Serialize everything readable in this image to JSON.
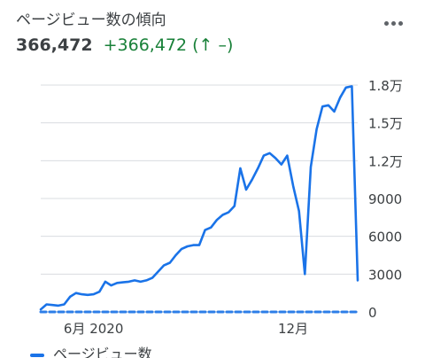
{
  "header": {
    "title": "ページビュー数の傾向",
    "total": "366,472",
    "delta": "+366,472 (↑ –)"
  },
  "menu_icon": "more-vert-icon",
  "colors": {
    "series": "#1a73e8",
    "grid": "#dadce0",
    "axis_text": "#3c4043",
    "delta": "#188038"
  },
  "chart_data": {
    "type": "line",
    "title": "",
    "xlabel": "",
    "ylabel": "",
    "ylim": [
      0,
      18000
    ],
    "y_ticks": [
      {
        "value": 0,
        "label": "0"
      },
      {
        "value": 3000,
        "label": "3000"
      },
      {
        "value": 6000,
        "label": "6000"
      },
      {
        "value": 9000,
        "label": "9000"
      },
      {
        "value": 12000,
        "label": "1.2万"
      },
      {
        "value": 15000,
        "label": "1.5万"
      },
      {
        "value": 18000,
        "label": "1.8万"
      }
    ],
    "x_ticks": [
      {
        "index": 9,
        "label": "6月 2020"
      },
      {
        "index": 43,
        "label": "12月"
      }
    ],
    "grid": true,
    "legend_position": "bottom-left",
    "series": [
      {
        "name": "ページビュー数",
        "values": [
          200,
          600,
          550,
          500,
          600,
          1200,
          1500,
          1400,
          1350,
          1400,
          1600,
          2400,
          2100,
          2300,
          2350,
          2400,
          2500,
          2400,
          2500,
          2700,
          3200,
          3700,
          3900,
          4500,
          5000,
          5200,
          5300,
          5300,
          6500,
          6700,
          7300,
          7700,
          7900,
          8400,
          11400,
          9700,
          10500,
          11400,
          12400,
          12600,
          12200,
          11700,
          12400,
          10000,
          8000,
          3000,
          11500,
          14500,
          16300,
          16400,
          15900,
          17000,
          17800,
          17900,
          2500
        ]
      },
      {
        "name": "",
        "values": [
          0,
          0,
          0,
          0,
          0,
          0,
          0,
          0,
          0,
          0,
          0,
          0,
          0,
          0,
          0,
          0,
          0,
          0,
          0,
          0,
          0,
          0,
          0,
          0,
          0,
          0,
          0,
          0,
          0,
          0,
          0,
          0,
          0,
          0,
          0,
          0,
          0,
          0,
          0,
          0,
          0,
          0,
          0,
          0,
          0,
          0,
          0,
          0,
          0,
          0,
          0,
          0,
          0,
          0,
          0
        ],
        "style": "dashed"
      }
    ]
  }
}
